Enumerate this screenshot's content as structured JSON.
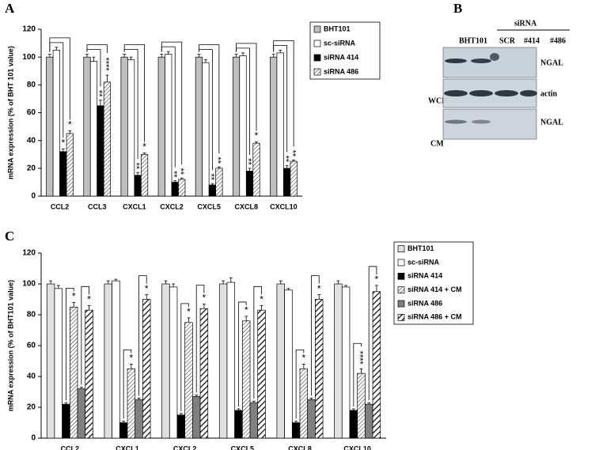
{
  "panel_labels": [
    "A",
    "B",
    "C"
  ],
  "chart_data": [
    {
      "type": "bar",
      "ylabel": "mRNA expression (% of BHT 101 value)",
      "categories": [
        "CCL2",
        "CCL3",
        "CXCL1",
        "CXCL2",
        "CXCL5",
        "CXCL8",
        "CXCL10"
      ],
      "ylim": [
        0,
        120
      ],
      "yticks": [
        0,
        20,
        40,
        60,
        80,
        100,
        120
      ],
      "series": [
        {
          "name": "BHT101",
          "color": "#bfbfbf",
          "values": [
            100,
            100,
            100,
            100,
            100,
            100,
            100
          ],
          "errors": [
            2,
            2,
            2,
            2,
            2,
            2,
            2
          ]
        },
        {
          "name": "sc-siRNA",
          "color": "#ffffff",
          "values": [
            105,
            97,
            98,
            102,
            96,
            101,
            103
          ],
          "errors": [
            2,
            3,
            2,
            2,
            2,
            2,
            2
          ]
        },
        {
          "name": "siRNA 414",
          "color": "#000000",
          "values": [
            32,
            65,
            15,
            10,
            8,
            18,
            20
          ],
          "errors": [
            2,
            4,
            2,
            1,
            1,
            2,
            2
          ],
          "sig_labels": [
            "*",
            "**",
            "**",
            "**",
            "**",
            "**",
            "**"
          ]
        },
        {
          "name": "siRNA 486",
          "color": "#000000",
          "pattern": "hatch",
          "values": [
            45,
            82,
            30,
            12,
            20,
            38,
            25
          ],
          "errors": [
            2,
            5,
            1,
            1,
            1,
            1,
            1
          ],
          "sig_labels": [
            "*",
            "****",
            "*",
            "**",
            "**",
            "*",
            "**"
          ]
        }
      ]
    },
    {
      "type": "bar",
      "ylabel": "mRNA expression (% of BHT101 value)",
      "categories": [
        "CCL2",
        "CXCL1",
        "CXCL2",
        "CXCL5",
        "CXCL8",
        "CXCL10"
      ],
      "ylim": [
        0,
        120
      ],
      "yticks": [
        0,
        20,
        40,
        60,
        80,
        100,
        120
      ],
      "series": [
        {
          "name": "BHT101",
          "color": "#e0e0e0",
          "values": [
            100,
            100,
            100,
            100,
            100,
            100
          ],
          "errors": [
            2,
            2,
            2,
            2,
            2,
            2
          ]
        },
        {
          "name": "sc-siRNA",
          "color": "#ffffff",
          "values": [
            97,
            102,
            98,
            101,
            96,
            98
          ],
          "errors": [
            2,
            1,
            2,
            3,
            1,
            1
          ]
        },
        {
          "name": "siRNA 414",
          "color": "#000000",
          "values": [
            22,
            10,
            15,
            18,
            10,
            18
          ],
          "errors": [
            1,
            1,
            1,
            1,
            1,
            1
          ]
        },
        {
          "name": "siRNA 414 + CM",
          "color": "#000000",
          "pattern": "hatch",
          "values": [
            85,
            45,
            75,
            76,
            45,
            42
          ],
          "errors": [
            3,
            3,
            3,
            3,
            3,
            3
          ],
          "sig_labels": [
            "*",
            "*",
            "*",
            "*",
            "*",
            "****"
          ]
        },
        {
          "name": "siRNA 486",
          "color": "#808080",
          "values": [
            32,
            25,
            27,
            23,
            25,
            22
          ],
          "errors": [
            1,
            1,
            1,
            1,
            1,
            1
          ]
        },
        {
          "name": "siRNA 486 + CM",
          "color": "#000000",
          "pattern": "hatch-bold",
          "values": [
            83,
            90,
            84,
            83,
            90,
            95
          ],
          "errors": [
            3,
            3,
            3,
            3,
            3,
            4
          ],
          "sig_labels": [
            "*",
            "*",
            "*",
            "*",
            "*",
            "*"
          ]
        }
      ]
    }
  ],
  "blot": {
    "header": "siRNA",
    "lanes": [
      "BHT101",
      "SCR",
      "#414",
      "#486"
    ],
    "row_labels": [
      "WCL",
      "CM"
    ],
    "band_labels": [
      "NGAL",
      "actin",
      "NGAL"
    ]
  }
}
